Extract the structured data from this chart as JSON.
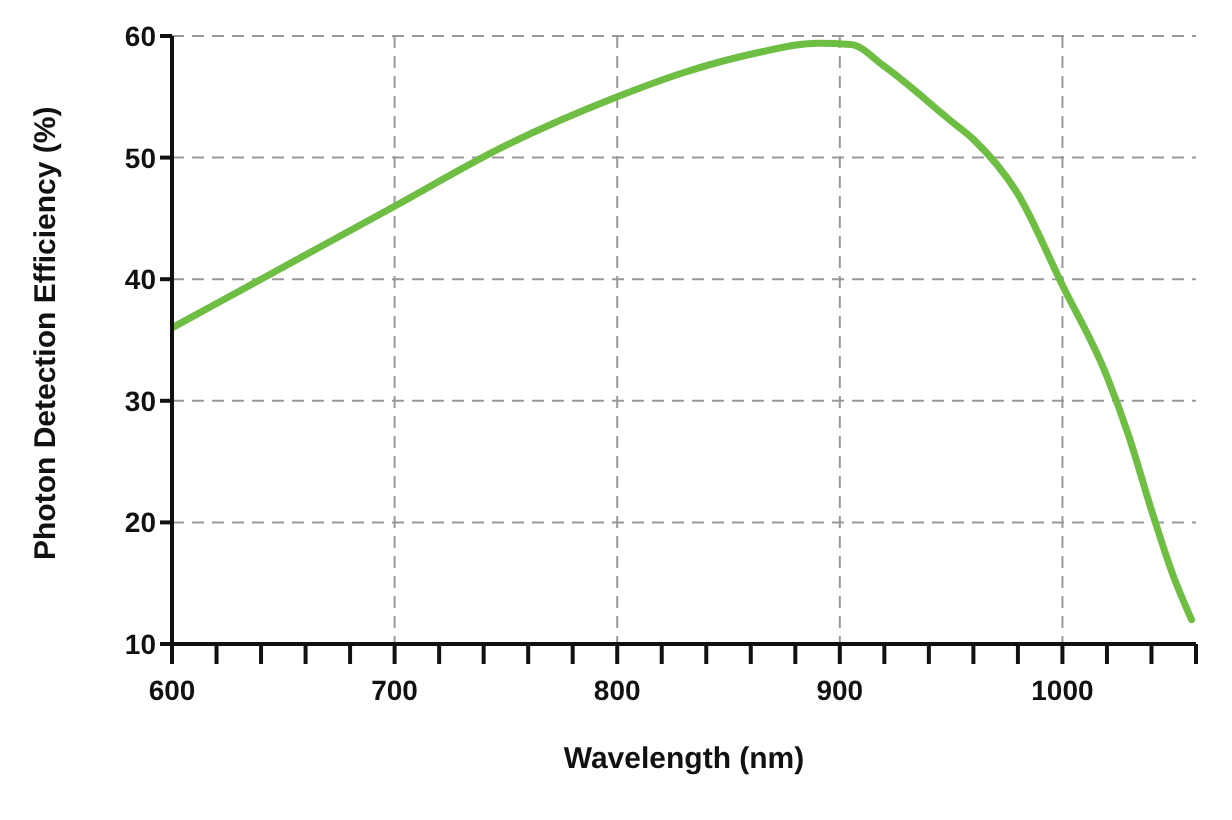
{
  "chart_data": {
    "type": "line",
    "xlabel": "Wavelength (nm)",
    "ylabel": "Photon Detection Efficiency (%)",
    "x": [
      600,
      640,
      700,
      750,
      800,
      830,
      860,
      890,
      905,
      920,
      950,
      960,
      980,
      1000,
      1020,
      1030,
      1040,
      1050,
      1058
    ],
    "series": [
      {
        "color": "#6fbe44",
        "values": [
          36,
          40,
          46,
          51,
          55,
          57,
          58.5,
          59.4,
          59.3,
          57.5,
          53,
          51.5,
          47,
          39.5,
          32,
          27,
          21,
          15.5,
          12
        ]
      }
    ],
    "xlim": [
      600,
      1060
    ],
    "xticks": [
      600,
      {
        "value": 620,
        "label": null
      },
      {
        "value": 640,
        "label": null
      },
      {
        "value": 660,
        "label": null
      },
      {
        "value": 680,
        "label": null
      },
      700,
      {
        "value": 720,
        "label": null
      },
      {
        "value": 740,
        "label": null
      },
      {
        "value": 760,
        "label": null
      },
      {
        "value": 780,
        "label": null
      },
      800,
      {
        "value": 820,
        "label": null
      },
      {
        "value": 840,
        "label": null
      },
      {
        "value": 860,
        "label": null
      },
      {
        "value": 880,
        "label": null
      },
      900,
      {
        "value": 920,
        "label": null
      },
      {
        "value": 940,
        "label": null
      },
      {
        "value": 960,
        "label": null
      },
      {
        "value": 980,
        "label": null
      },
      1000,
      {
        "value": 1020,
        "label": null
      },
      {
        "value": 1040,
        "label": null
      },
      {
        "value": 1060,
        "label": null
      }
    ],
    "ylim": [
      10,
      60
    ],
    "yticks": [
      10,
      20,
      30,
      40,
      50,
      60
    ],
    "grid": true,
    "line_style": "solid",
    "marker": "none",
    "legend": false
  }
}
